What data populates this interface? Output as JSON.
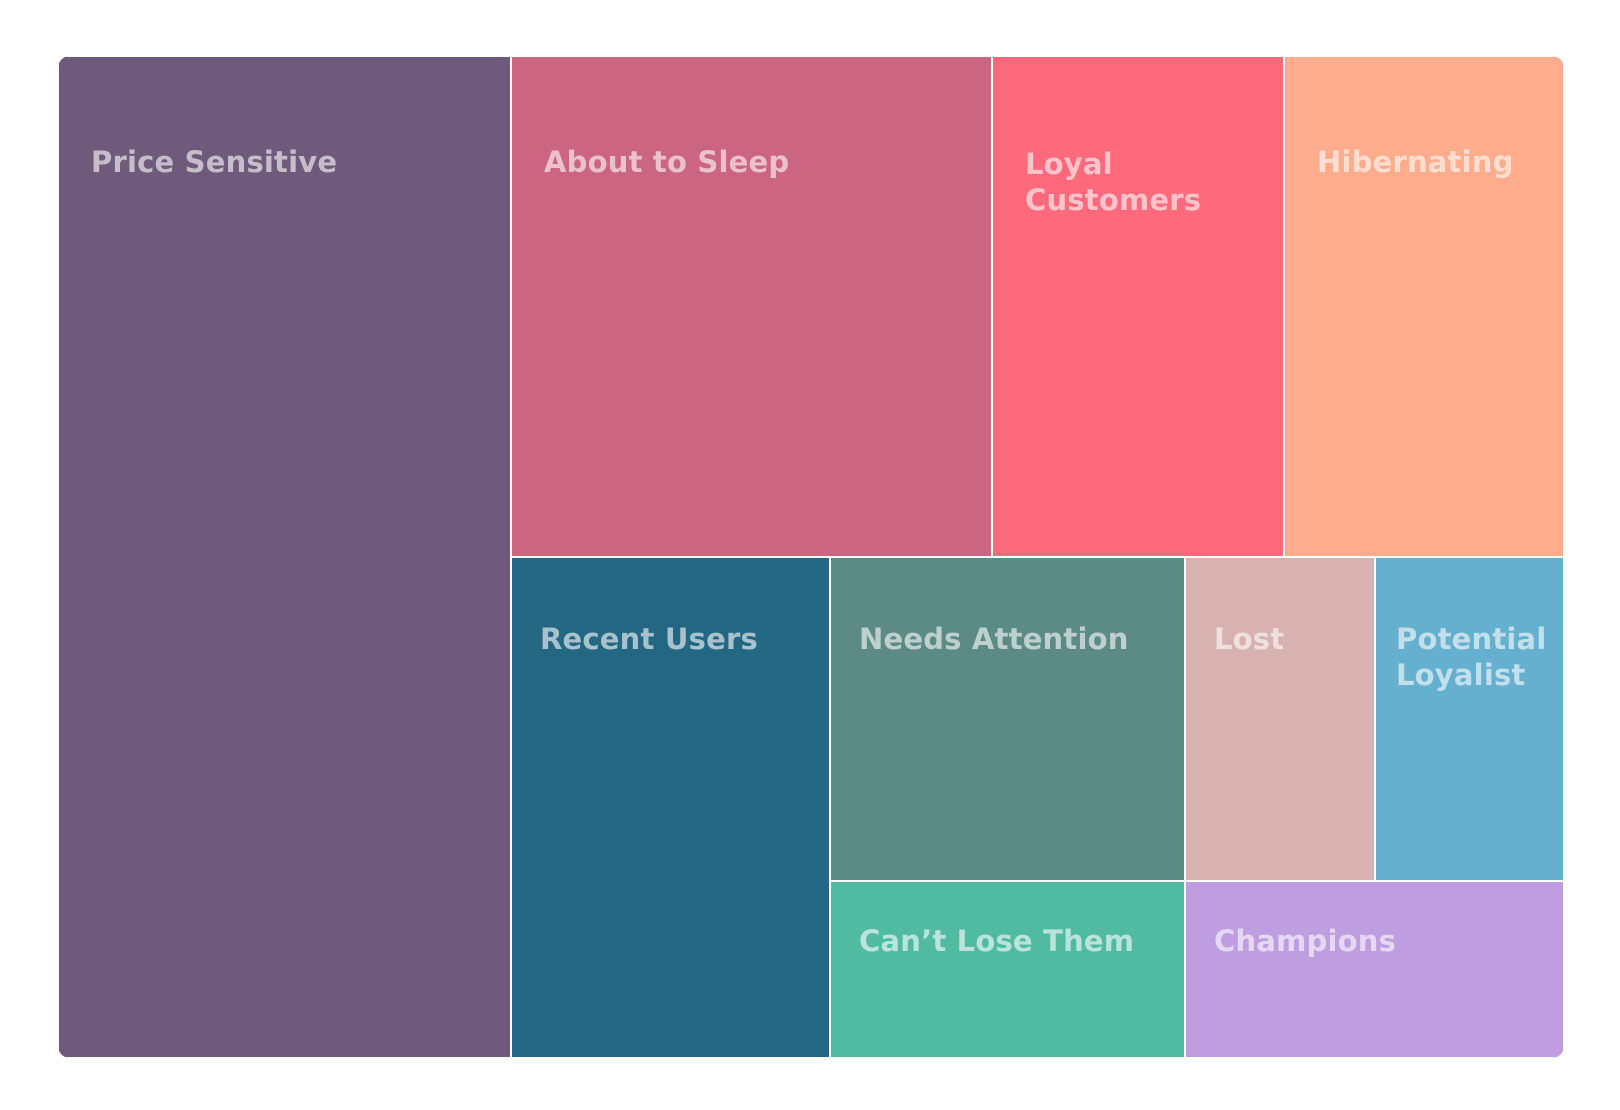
{
  "chart_data": {
    "type": "treemap",
    "title": "",
    "segments": [
      {
        "name": "Price Sensitive",
        "value": 1000,
        "color": "#6F5A7B"
      },
      {
        "name": "About to Sleep",
        "value": 520,
        "color": "#CC6582"
      },
      {
        "name": "Loyal Customers",
        "value": 315,
        "color": "#FF697C"
      },
      {
        "name": "Hibernating",
        "value": 310,
        "color": "#FFAC8D"
      },
      {
        "name": "Recent Users",
        "value": 369,
        "color": "#236783"
      },
      {
        "name": "Needs Attention",
        "value": 297,
        "color": "#5C8B84"
      },
      {
        "name": "Lost",
        "value": 158,
        "color": "#D8B2B1"
      },
      {
        "name": "Potential Loyalist",
        "value": 160,
        "color": "#66B0CF"
      },
      {
        "name": "Can’t Lose Them",
        "value": 162,
        "color": "#51BBA1"
      },
      {
        "name": "Champions",
        "value": 172,
        "color": "#BE9EE1"
      }
    ]
  }
}
